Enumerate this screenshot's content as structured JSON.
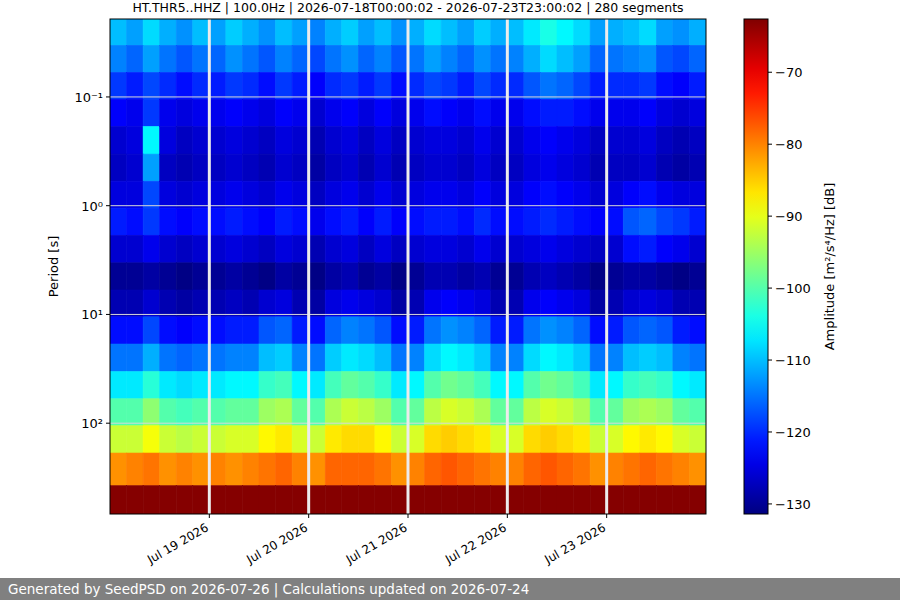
{
  "chart_data": {
    "type": "heatmap",
    "title": "HT.THR5..HHZ | 100.0Hz | 2026-07-18T00:00:02 - 2026-07-23T23:00:02 | 280 segments",
    "y_label": "Period [s]",
    "footer": "Generated by SeedPSD on 2026-07-26 | Calculations updated on 2026-07-24",
    "log": "y",
    "grid": true,
    "xlim": [
      "2026-07-18T00:00",
      "2026-07-24T00:00"
    ],
    "xticks": [
      {
        "value": "2026-07-19T00:00",
        "label": "Jul 19 2026"
      },
      {
        "value": "2026-07-20T00:00",
        "label": "Jul 20 2026"
      },
      {
        "value": "2026-07-21T00:00",
        "label": "Jul 21 2026"
      },
      {
        "value": "2026-07-22T00:00",
        "label": "Jul 22 2026"
      },
      {
        "value": "2026-07-23T00:00",
        "label": "Jul 23 2026"
      }
    ],
    "ylim": [
      0.0192,
      684
    ],
    "yticks": [
      {
        "value": 0.1,
        "label": "10⁻¹"
      },
      {
        "value": 1,
        "label": "10⁰"
      },
      {
        "value": 10,
        "label": "10¹"
      },
      {
        "value": 100,
        "label": "10²"
      }
    ],
    "x": [
      "2026-07-18T00:00",
      "2026-07-18T04:00",
      "2026-07-18T08:00",
      "2026-07-18T12:00",
      "2026-07-18T16:00",
      "2026-07-18T20:00",
      "2026-07-19T00:00",
      "2026-07-19T04:00",
      "2026-07-19T08:00",
      "2026-07-19T12:00",
      "2026-07-19T16:00",
      "2026-07-19T20:00",
      "2026-07-20T00:00",
      "2026-07-20T04:00",
      "2026-07-20T08:00",
      "2026-07-20T12:00",
      "2026-07-20T16:00",
      "2026-07-20T20:00",
      "2026-07-21T00:00",
      "2026-07-21T04:00",
      "2026-07-21T08:00",
      "2026-07-21T12:00",
      "2026-07-21T16:00",
      "2026-07-21T20:00",
      "2026-07-22T00:00",
      "2026-07-22T04:00",
      "2026-07-22T08:00",
      "2026-07-22T12:00",
      "2026-07-22T16:00",
      "2026-07-22T20:00",
      "2026-07-23T00:00",
      "2026-07-23T04:00",
      "2026-07-23T08:00",
      "2026-07-23T12:00",
      "2026-07-23T16:00",
      "2026-07-23T20:00"
    ],
    "y": [
      0.025,
      0.045,
      0.079,
      0.14,
      0.25,
      0.45,
      0.79,
      1.4,
      2.5,
      4.5,
      7.9,
      14,
      25,
      45,
      79,
      141,
      251,
      562
    ],
    "cells": [
      [
        -110,
        -112,
        -108,
        -111,
        -113,
        -110,
        -112,
        -109,
        -111,
        -113,
        -110,
        -112,
        -114,
        -111,
        -109,
        -112,
        -110,
        -113,
        -111,
        -108,
        -110,
        -112,
        -109,
        -111,
        -110,
        -107,
        -104,
        -106,
        -108,
        -112,
        -111,
        -110,
        -108,
        -112,
        -113,
        -111
      ],
      [
        -114,
        -116,
        -112,
        -115,
        -117,
        -115,
        -116,
        -113,
        -115,
        -117,
        -114,
        -116,
        -118,
        -115,
        -113,
        -116,
        -114,
        -117,
        -115,
        -112,
        -114,
        -116,
        -113,
        -115,
        -114,
        -111,
        -108,
        -110,
        -112,
        -116,
        -115,
        -114,
        -113,
        -117,
        -118,
        -116
      ],
      [
        -119,
        -121,
        -118,
        -120,
        -122,
        -120,
        -121,
        -119,
        -120,
        -122,
        -119,
        -121,
        -123,
        -120,
        -119,
        -121,
        -119,
        -122,
        -120,
        -118,
        -119,
        -121,
        -118,
        -120,
        -120,
        -117,
        -115,
        -116,
        -118,
        -121,
        -120,
        -120,
        -119,
        -122,
        -123,
        -121
      ],
      [
        -123,
        -124,
        -119,
        -124,
        -125,
        -124,
        -124,
        -123,
        -124,
        -125,
        -123,
        -124,
        -126,
        -124,
        -123,
        -125,
        -123,
        -125,
        -124,
        -122,
        -123,
        -124,
        -122,
        -124,
        -124,
        -122,
        -121,
        -121,
        -122,
        -124,
        -124,
        -124,
        -123,
        -125,
        -126,
        -125
      ],
      [
        -126,
        -125,
        -106,
        -125,
        -127,
        -126,
        -126,
        -125,
        -126,
        -127,
        -125,
        -126,
        -128,
        -126,
        -125,
        -127,
        -125,
        -127,
        -126,
        -125,
        -125,
        -126,
        -124,
        -126,
        -126,
        -124,
        -123,
        -124,
        -125,
        -127,
        -126,
        -126,
        -125,
        -127,
        -128,
        -127
      ],
      [
        -127,
        -126,
        -112,
        -127,
        -128,
        -127,
        -127,
        -126,
        -127,
        -128,
        -126,
        -127,
        -129,
        -127,
        -126,
        -128,
        -126,
        -128,
        -127,
        -126,
        -126,
        -127,
        -125,
        -127,
        -127,
        -125,
        -124,
        -125,
        -126,
        -128,
        -127,
        -127,
        -126,
        -128,
        -129,
        -128
      ],
      [
        -125,
        -125,
        -118,
        -125,
        -126,
        -125,
        -125,
        -124,
        -125,
        -126,
        -124,
        -125,
        -127,
        -125,
        -124,
        -126,
        -124,
        -126,
        -125,
        -124,
        -124,
        -125,
        -123,
        -125,
        -125,
        -123,
        -122,
        -123,
        -124,
        -126,
        -125,
        -123,
        -122,
        -124,
        -125,
        -125
      ],
      [
        -121,
        -122,
        -119,
        -122,
        -123,
        -122,
        -122,
        -121,
        -122,
        -123,
        -121,
        -122,
        -124,
        -122,
        -121,
        -123,
        -121,
        -123,
        -122,
        -121,
        -121,
        -122,
        -120,
        -122,
        -122,
        -121,
        -120,
        -121,
        -122,
        -123,
        -122,
        -117,
        -116,
        -118,
        -119,
        -121
      ],
      [
        -126,
        -126,
        -124,
        -126,
        -127,
        -126,
        -126,
        -125,
        -126,
        -127,
        -125,
        -126,
        -128,
        -126,
        -125,
        -127,
        -125,
        -127,
        -126,
        -125,
        -125,
        -126,
        -124,
        -126,
        -126,
        -125,
        -124,
        -125,
        -126,
        -127,
        -126,
        -122,
        -121,
        -123,
        -124,
        -126
      ],
      [
        -130,
        -130,
        -129,
        -130,
        -131,
        -130,
        -130,
        -129,
        -130,
        -131,
        -129,
        -130,
        -131,
        -129,
        -128,
        -130,
        -129,
        -131,
        -130,
        -128,
        -128,
        -129,
        -128,
        -130,
        -130,
        -128,
        -127,
        -128,
        -129,
        -131,
        -130,
        -129,
        -129,
        -130,
        -131,
        -130
      ],
      [
        -128,
        -128,
        -126,
        -128,
        -129,
        -128,
        -128,
        -127,
        -128,
        -126,
        -125,
        -128,
        -129,
        -125,
        -124,
        -125,
        -126,
        -129,
        -128,
        -124,
        -123,
        -124,
        -125,
        -128,
        -128,
        -124,
        -123,
        -124,
        -125,
        -129,
        -128,
        -126,
        -125,
        -126,
        -128,
        -128
      ],
      [
        -122,
        -122,
        -118,
        -122,
        -123,
        -122,
        -122,
        -121,
        -121,
        -117,
        -116,
        -121,
        -122,
        -116,
        -114,
        -115,
        -117,
        -122,
        -121,
        -115,
        -113,
        -114,
        -116,
        -121,
        -121,
        -115,
        -113,
        -114,
        -116,
        -122,
        -121,
        -117,
        -116,
        -117,
        -121,
        -122
      ],
      [
        -115,
        -115,
        -111,
        -115,
        -116,
        -115,
        -115,
        -114,
        -114,
        -110,
        -109,
        -114,
        -115,
        -109,
        -107,
        -108,
        -110,
        -115,
        -114,
        -108,
        -106,
        -107,
        -109,
        -114,
        -114,
        -108,
        -106,
        -107,
        -109,
        -115,
        -114,
        -110,
        -109,
        -110,
        -114,
        -115
      ],
      [
        -107,
        -107,
        -103,
        -107,
        -108,
        -107,
        -107,
        -106,
        -106,
        -102,
        -101,
        -106,
        -107,
        -101,
        -99,
        -100,
        -102,
        -107,
        -106,
        -100,
        -98,
        -99,
        -101,
        -106,
        -106,
        -100,
        -98,
        -99,
        -101,
        -107,
        -106,
        -102,
        -101,
        -102,
        -106,
        -107
      ],
      [
        -100,
        -100,
        -96,
        -100,
        -101,
        -100,
        -100,
        -99,
        -99,
        -95,
        -94,
        -99,
        -100,
        -94,
        -92,
        -93,
        -95,
        -100,
        -99,
        -93,
        -91,
        -92,
        -94,
        -99,
        -99,
        -93,
        -91,
        -92,
        -94,
        -100,
        -99,
        -95,
        -94,
        -95,
        -99,
        -100
      ],
      [
        -92,
        -92,
        -89,
        -92,
        -93,
        -92,
        -92,
        -91,
        -91,
        -88,
        -87,
        -91,
        -92,
        -87,
        -86,
        -86,
        -88,
        -92,
        -91,
        -86,
        -85,
        -86,
        -87,
        -91,
        -91,
        -86,
        -85,
        -86,
        -87,
        -92,
        -91,
        -88,
        -87,
        -88,
        -91,
        -92
      ],
      [
        -81,
        -80,
        -79,
        -81,
        -80,
        -81,
        -80,
        -81,
        -80,
        -79,
        -78,
        -80,
        -81,
        -78,
        -78,
        -78,
        -79,
        -81,
        -80,
        -78,
        -77,
        -78,
        -79,
        -80,
        -80,
        -78,
        -77,
        -78,
        -79,
        -81,
        -80,
        -79,
        -78,
        -79,
        -80,
        -81
      ],
      [
        -63,
        -63,
        -63,
        -63,
        -63,
        -63,
        -63,
        -63,
        -63,
        -63,
        -63,
        -63,
        -63,
        -63,
        -63,
        -63,
        -63,
        -63,
        -63,
        -63,
        -63,
        -63,
        -63,
        -63,
        -63,
        -63,
        -63,
        -63,
        -63,
        -63,
        -63,
        -63,
        -63,
        -63,
        -63,
        -63
      ]
    ],
    "colorbar": {
      "label": "Amplitude [m²/s⁴/Hz] [dB]",
      "lim": [
        -131.4,
        -62.6
      ],
      "ticks": [
        -70,
        -80,
        -90,
        -100,
        -110,
        -120,
        -130
      ]
    }
  }
}
